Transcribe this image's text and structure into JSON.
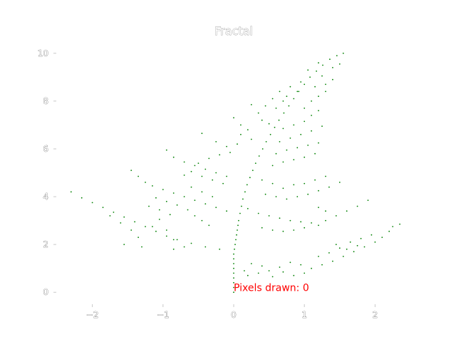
{
  "chart_data": {
    "type": "scatter",
    "title": "Fractal",
    "xlabel": "",
    "ylabel": "",
    "xlim": [
      -2.5,
      2.5
    ],
    "ylim": [
      -0.5,
      10.5
    ],
    "x_ticks": [
      -2,
      -1,
      0,
      1,
      2
    ],
    "x_tick_labels": [
      "−2",
      "−1",
      "0",
      "1",
      "2"
    ],
    "y_ticks": [
      0,
      2,
      4,
      6,
      8,
      10
    ],
    "y_tick_labels": [
      "0",
      "2",
      "4",
      "6",
      "8",
      "10"
    ],
    "grid": false,
    "point_color": "#008000",
    "annotation": {
      "text": "Pixels drawn: 0",
      "x": 0.0,
      "y": 0.05,
      "color": "#ff0000"
    },
    "series": [
      {
        "points": [
          [
            0.0,
            0.0
          ],
          [
            0.0,
            0.2
          ],
          [
            0.0,
            0.4
          ],
          [
            0.0,
            0.6
          ],
          [
            0.0,
            0.8
          ],
          [
            0.0,
            1.0
          ],
          [
            0.0,
            1.2
          ],
          [
            0.0,
            1.4
          ],
          [
            0.0,
            1.6
          ],
          [
            0.01,
            1.8
          ],
          [
            0.02,
            2.0
          ],
          [
            0.03,
            2.2
          ],
          [
            0.04,
            2.4
          ],
          [
            0.05,
            2.6
          ],
          [
            0.06,
            2.8
          ],
          [
            0.07,
            3.0
          ],
          [
            0.09,
            3.3
          ],
          [
            0.11,
            3.6
          ],
          [
            0.13,
            3.9
          ],
          [
            0.16,
            4.2
          ],
          [
            0.19,
            4.5
          ],
          [
            0.23,
            4.8
          ],
          [
            0.27,
            5.1
          ],
          [
            0.31,
            5.4
          ],
          [
            0.36,
            5.7
          ],
          [
            0.41,
            6.0
          ],
          [
            0.46,
            6.3
          ],
          [
            0.52,
            6.6
          ],
          [
            0.58,
            6.9
          ],
          [
            0.64,
            7.2
          ],
          [
            0.71,
            7.5
          ],
          [
            0.78,
            7.8
          ],
          [
            0.85,
            8.1
          ],
          [
            0.92,
            8.4
          ],
          [
            1.0,
            8.7
          ],
          [
            1.08,
            9.0
          ],
          [
            1.17,
            9.25
          ],
          [
            1.26,
            9.5
          ],
          [
            1.36,
            9.75
          ],
          [
            1.46,
            9.9
          ],
          [
            1.55,
            10.0
          ],
          [
            -2.3,
            4.2
          ],
          [
            -2.15,
            3.95
          ],
          [
            -2.0,
            3.75
          ],
          [
            -1.85,
            3.55
          ],
          [
            -1.7,
            3.35
          ],
          [
            -1.55,
            3.15
          ],
          [
            -1.4,
            2.95
          ],
          [
            -1.25,
            2.75
          ],
          [
            -1.1,
            2.55
          ],
          [
            -0.95,
            2.35
          ],
          [
            -0.8,
            2.2
          ],
          [
            -0.6,
            2.05
          ],
          [
            -0.4,
            1.9
          ],
          [
            -0.2,
            1.8
          ],
          [
            -1.75,
            3.2
          ],
          [
            -1.6,
            2.9
          ],
          [
            -1.45,
            2.6
          ],
          [
            -1.35,
            2.3
          ],
          [
            -1.55,
            2.0
          ],
          [
            -1.3,
            1.9
          ],
          [
            -1.15,
            2.75
          ],
          [
            -1.05,
            3.05
          ],
          [
            -0.95,
            2.6
          ],
          [
            -0.85,
            2.2
          ],
          [
            -0.7,
            1.9
          ],
          [
            -0.85,
            1.8
          ],
          [
            -1.45,
            5.1
          ],
          [
            -1.35,
            4.85
          ],
          [
            -1.25,
            4.6
          ],
          [
            -1.15,
            4.45
          ],
          [
            -1.0,
            4.3
          ],
          [
            -0.85,
            4.15
          ],
          [
            -0.7,
            4.0
          ],
          [
            -0.55,
            3.85
          ],
          [
            -0.4,
            3.7
          ],
          [
            -0.25,
            3.55
          ],
          [
            -0.1,
            3.4
          ],
          [
            -1.1,
            3.95
          ],
          [
            -0.95,
            3.8
          ],
          [
            -0.8,
            3.65
          ],
          [
            -0.65,
            3.45
          ],
          [
            -0.55,
            3.2
          ],
          [
            -0.45,
            3.0
          ],
          [
            -0.35,
            2.8
          ],
          [
            -0.6,
            4.4
          ],
          [
            -0.45,
            4.2
          ],
          [
            -0.3,
            4.0
          ],
          [
            -1.2,
            3.6
          ],
          [
            -1.05,
            3.45
          ],
          [
            -0.9,
            3.25
          ],
          [
            -0.95,
            5.95
          ],
          [
            -0.85,
            5.65
          ],
          [
            -0.7,
            5.45
          ],
          [
            -0.55,
            5.3
          ],
          [
            -0.4,
            5.15
          ],
          [
            -0.25,
            5.0
          ],
          [
            -0.1,
            4.85
          ],
          [
            -0.6,
            5.05
          ],
          [
            -0.45,
            4.85
          ],
          [
            -0.3,
            4.7
          ],
          [
            -0.15,
            4.55
          ],
          [
            -0.7,
            4.9
          ],
          [
            -0.5,
            5.4
          ],
          [
            -0.35,
            5.6
          ],
          [
            -0.2,
            5.75
          ],
          [
            -0.05,
            5.85
          ],
          [
            -0.45,
            6.65
          ],
          [
            -0.25,
            6.3
          ],
          [
            -0.1,
            6.1
          ],
          [
            0.0,
            7.3
          ],
          [
            0.1,
            7.0
          ],
          [
            0.2,
            6.8
          ],
          [
            0.25,
            6.4
          ],
          [
            0.1,
            6.6
          ],
          [
            0.05,
            6.2
          ],
          [
            0.25,
            7.85
          ],
          [
            0.35,
            7.5
          ],
          [
            0.4,
            7.2
          ],
          [
            0.5,
            7.05
          ],
          [
            0.55,
            8.1
          ],
          [
            0.45,
            7.8
          ],
          [
            0.65,
            8.4
          ],
          [
            0.75,
            8.2
          ],
          [
            0.6,
            7.7
          ],
          [
            0.8,
            8.6
          ],
          [
            0.9,
            8.4
          ],
          [
            0.95,
            8.8
          ],
          [
            0.7,
            8.0
          ],
          [
            0.2,
            3.5
          ],
          [
            0.35,
            3.3
          ],
          [
            0.5,
            3.2
          ],
          [
            0.65,
            3.1
          ],
          [
            0.8,
            3.0
          ],
          [
            0.95,
            2.95
          ],
          [
            1.1,
            2.9
          ],
          [
            0.4,
            2.7
          ],
          [
            0.55,
            2.6
          ],
          [
            0.7,
            2.55
          ],
          [
            0.85,
            2.6
          ],
          [
            1.0,
            2.7
          ],
          [
            1.2,
            2.8
          ],
          [
            1.3,
            3.0
          ],
          [
            1.45,
            3.2
          ],
          [
            1.6,
            3.4
          ],
          [
            1.75,
            3.6
          ],
          [
            1.9,
            3.85
          ],
          [
            1.3,
            3.4
          ],
          [
            1.2,
            3.55
          ],
          [
            1.1,
            1.0
          ],
          [
            1.25,
            1.15
          ],
          [
            1.4,
            1.3
          ],
          [
            1.55,
            1.5
          ],
          [
            1.7,
            1.7
          ],
          [
            1.85,
            1.9
          ],
          [
            2.0,
            2.1
          ],
          [
            2.1,
            2.3
          ],
          [
            2.2,
            2.55
          ],
          [
            2.35,
            2.85
          ],
          [
            2.25,
            2.75
          ],
          [
            1.95,
            2.4
          ],
          [
            1.8,
            2.25
          ],
          [
            1.65,
            2.1
          ],
          [
            1.5,
            1.85
          ],
          [
            1.35,
            1.65
          ],
          [
            1.2,
            1.5
          ],
          [
            0.95,
            1.15
          ],
          [
            0.8,
            1.25
          ],
          [
            0.65,
            1.05
          ],
          [
            0.5,
            0.9
          ],
          [
            0.35,
            0.8
          ],
          [
            0.2,
            0.7
          ],
          [
            0.7,
            0.85
          ],
          [
            0.85,
            0.7
          ],
          [
            0.55,
            0.65
          ],
          [
            0.4,
            1.1
          ],
          [
            0.25,
            1.2
          ],
          [
            1.0,
            0.8
          ],
          [
            0.15,
            0.9
          ],
          [
            1.45,
            2.0
          ],
          [
            1.6,
            1.8
          ],
          [
            1.75,
            1.95
          ],
          [
            0.45,
            4.1
          ],
          [
            0.6,
            4.0
          ],
          [
            0.75,
            3.9
          ],
          [
            0.9,
            4.0
          ],
          [
            1.05,
            4.1
          ],
          [
            1.2,
            4.25
          ],
          [
            1.35,
            4.4
          ],
          [
            1.5,
            4.6
          ],
          [
            0.7,
            4.35
          ],
          [
            0.85,
            4.5
          ],
          [
            1.0,
            4.55
          ],
          [
            0.55,
            4.55
          ],
          [
            1.15,
            4.7
          ],
          [
            1.3,
            4.85
          ],
          [
            0.4,
            4.7
          ],
          [
            0.55,
            5.3
          ],
          [
            0.7,
            5.45
          ],
          [
            0.85,
            5.55
          ],
          [
            1.0,
            5.65
          ],
          [
            1.15,
            5.8
          ],
          [
            0.6,
            5.8
          ],
          [
            0.75,
            5.95
          ],
          [
            0.9,
            6.05
          ],
          [
            1.05,
            6.15
          ],
          [
            1.2,
            6.25
          ],
          [
            0.65,
            6.3
          ],
          [
            0.8,
            6.45
          ],
          [
            0.95,
            6.6
          ],
          [
            1.1,
            6.75
          ],
          [
            1.25,
            6.95
          ],
          [
            0.7,
            6.85
          ],
          [
            0.85,
            7.0
          ],
          [
            1.0,
            7.15
          ],
          [
            1.1,
            7.4
          ],
          [
            1.2,
            7.6
          ],
          [
            1.0,
            7.7
          ],
          [
            1.1,
            8.0
          ],
          [
            1.2,
            8.2
          ],
          [
            1.3,
            8.4
          ],
          [
            1.15,
            8.6
          ],
          [
            1.3,
            8.7
          ],
          [
            1.4,
            8.9
          ],
          [
            1.25,
            9.05
          ],
          [
            1.05,
            9.3
          ],
          [
            1.2,
            9.6
          ],
          [
            1.4,
            9.4
          ],
          [
            1.5,
            9.55
          ]
        ]
      }
    ]
  }
}
